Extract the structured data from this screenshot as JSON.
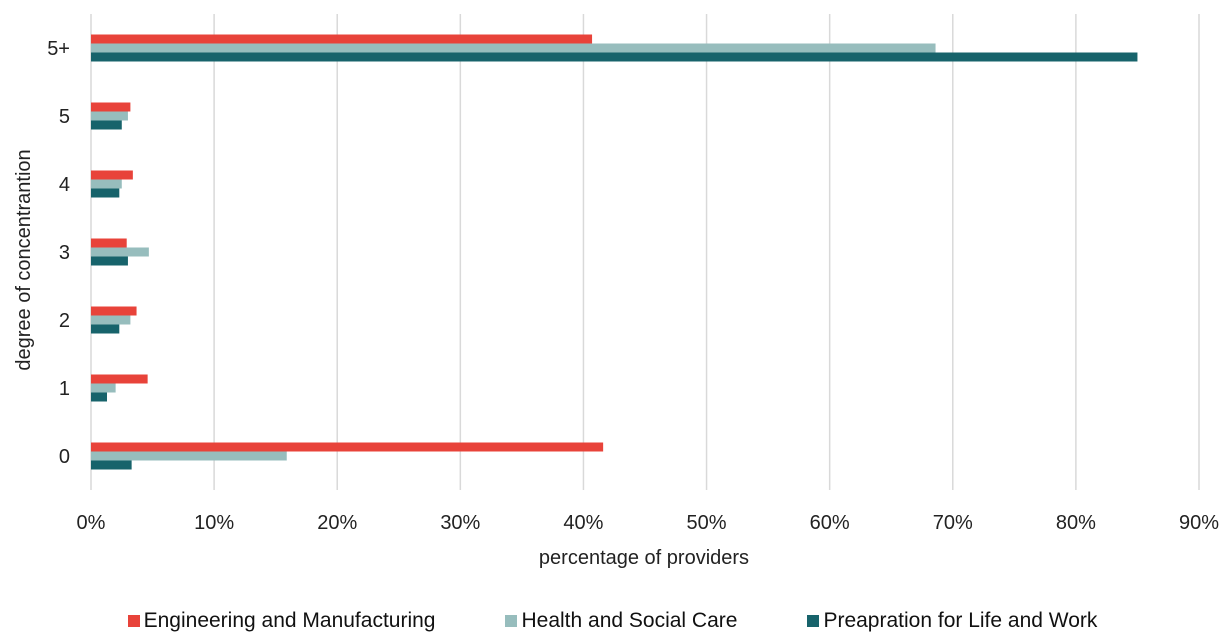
{
  "chart_data": {
    "type": "bar",
    "orientation": "horizontal",
    "title": "",
    "xlabel": "percentage of providers",
    "ylabel": "degree of concentrantion",
    "categories": [
      "0",
      "1",
      "2",
      "3",
      "4",
      "5",
      "5+"
    ],
    "xlim": [
      0,
      90
    ],
    "x_ticks": [
      "0%",
      "10%",
      "20%",
      "30%",
      "40%",
      "50%",
      "60%",
      "70%",
      "80%",
      "90%"
    ],
    "grid": "vertical",
    "legend_position": "bottom",
    "series": [
      {
        "name": "Engineering and Manufacturing",
        "color": "#e8433a",
        "values": [
          41.6,
          4.6,
          3.7,
          2.9,
          3.4,
          3.2,
          40.7
        ]
      },
      {
        "name": "Health and Social Care",
        "color": "#97bdbd",
        "values": [
          15.9,
          2.0,
          3.2,
          4.7,
          2.5,
          3.0,
          68.6
        ]
      },
      {
        "name": "Preapration for Life and Work",
        "color": "#17636b",
        "values": [
          3.3,
          1.3,
          2.3,
          3.0,
          2.3,
          2.5,
          85.0
        ]
      }
    ]
  }
}
